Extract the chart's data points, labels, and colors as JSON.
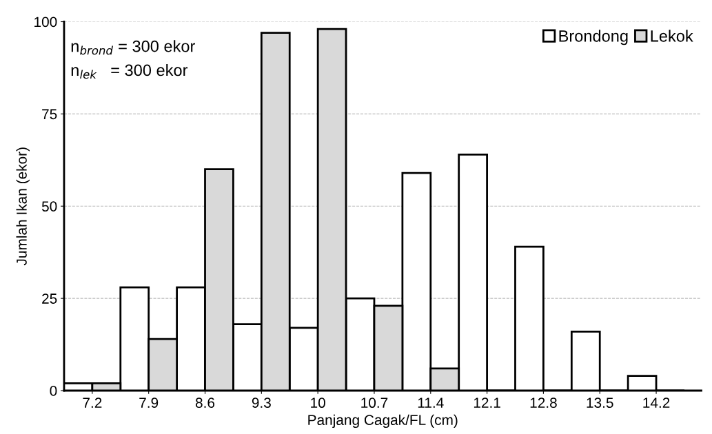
{
  "chart_data": {
    "type": "bar",
    "xlabel": "Panjang Cagak/FL (cm)",
    "ylabel": "Jumlah Ikan (ekor)",
    "categories": [
      "7.2",
      "7.9",
      "8.6",
      "9.3",
      "10",
      "10.7",
      "11.4",
      "12.1",
      "12.8",
      "13.5",
      "14.2"
    ],
    "series": [
      {
        "name": "Brondong",
        "color": "#ffffff",
        "values": [
          2,
          28,
          28,
          18,
          17,
          25,
          59,
          64,
          39,
          16,
          4
        ]
      },
      {
        "name": "Lekok",
        "color": "#d9d9d9",
        "values": [
          2,
          14,
          60,
          97,
          98,
          23,
          6,
          0,
          0,
          0,
          0
        ]
      }
    ],
    "ylim": [
      0,
      100
    ],
    "yticks": [
      0,
      25,
      50,
      75,
      100
    ],
    "grid": "y",
    "legend": "top right",
    "annotations": [
      "n$_{brond}$ = 300 ekor",
      "n$_{lek}$   = 300 ekor"
    ]
  }
}
